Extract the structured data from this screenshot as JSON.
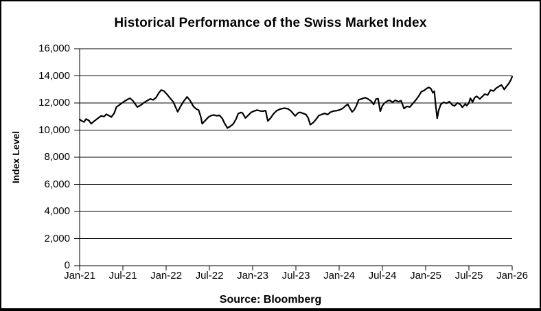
{
  "chart_data": {
    "type": "line",
    "title": "Historical Performance of the Swiss Market Index",
    "ylabel": "Index Level",
    "xlabel": "",
    "source_note": "Source: Bloomberg",
    "legend": "none",
    "grid": "horizontal",
    "line_color": "#000000",
    "ylim": [
      0,
      16000
    ],
    "y_tick_values": [
      0,
      2000,
      4000,
      6000,
      8000,
      10000,
      12000,
      14000,
      16000
    ],
    "y_tick_labels": [
      "0",
      "2,000",
      "4,000",
      "6,000",
      "8,000",
      "10,000",
      "12,000",
      "14,000",
      "16,000"
    ],
    "x_tick_months": [
      0,
      6,
      12,
      18,
      24,
      30,
      36,
      42,
      48,
      54,
      60
    ],
    "x_tick_labels": [
      "Jan-21",
      "Jul-21",
      "Jan-22",
      "Jul-22",
      "Jan-23",
      "Jul-23",
      "Jan-24",
      "Jul-24",
      "Jan-25",
      "Jul-25",
      "Jan-26"
    ],
    "xlim_months": [
      0,
      60
    ],
    "series": [
      {
        "name": "Swiss Market Index",
        "points_format": "[months since Jan-2021, index level]",
        "points": [
          [
            0,
            10780
          ],
          [
            0.3,
            10680
          ],
          [
            0.6,
            10600
          ],
          [
            0.9,
            10820
          ],
          [
            1.3,
            10700
          ],
          [
            1.6,
            10470
          ],
          [
            2.1,
            10700
          ],
          [
            2.6,
            10900
          ],
          [
            3,
            11050
          ],
          [
            3.4,
            11000
          ],
          [
            3.7,
            11170
          ],
          [
            4.1,
            11060
          ],
          [
            4.4,
            10960
          ],
          [
            4.8,
            11250
          ],
          [
            5.1,
            11700
          ],
          [
            5.5,
            11850
          ],
          [
            5.8,
            11980
          ],
          [
            6.3,
            12150
          ],
          [
            6.7,
            12280
          ],
          [
            7,
            12350
          ],
          [
            7.4,
            12150
          ],
          [
            8,
            11700
          ],
          [
            8.5,
            11850
          ],
          [
            9,
            12050
          ],
          [
            9.4,
            12180
          ],
          [
            9.8,
            12300
          ],
          [
            10.2,
            12230
          ],
          [
            10.6,
            12400
          ],
          [
            11,
            12750
          ],
          [
            11.3,
            12950
          ],
          [
            11.7,
            12880
          ],
          [
            12.1,
            12650
          ],
          [
            12.4,
            12450
          ],
          [
            13,
            12070
          ],
          [
            13.3,
            11700
          ],
          [
            13.6,
            11350
          ],
          [
            14,
            11750
          ],
          [
            14.4,
            12100
          ],
          [
            14.9,
            12450
          ],
          [
            15.3,
            12200
          ],
          [
            15.8,
            11730
          ],
          [
            16.2,
            11550
          ],
          [
            16.5,
            11480
          ],
          [
            16.8,
            11000
          ],
          [
            17,
            10470
          ],
          [
            17.4,
            10700
          ],
          [
            17.9,
            10970
          ],
          [
            18.3,
            11080
          ],
          [
            18.6,
            11120
          ],
          [
            19,
            11060
          ],
          [
            19.4,
            11090
          ],
          [
            19.8,
            10850
          ],
          [
            20.1,
            10500
          ],
          [
            20.5,
            10150
          ],
          [
            20.9,
            10280
          ],
          [
            21.3,
            10450
          ],
          [
            21.7,
            10820
          ],
          [
            22,
            11220
          ],
          [
            22.4,
            11300
          ],
          [
            22.6,
            11250
          ],
          [
            23,
            10890
          ],
          [
            23.4,
            11100
          ],
          [
            23.8,
            11310
          ],
          [
            24.2,
            11400
          ],
          [
            24.6,
            11480
          ],
          [
            25,
            11420
          ],
          [
            25.4,
            11390
          ],
          [
            25.8,
            11440
          ],
          [
            26.1,
            10670
          ],
          [
            26.5,
            10900
          ],
          [
            26.9,
            11200
          ],
          [
            27.3,
            11420
          ],
          [
            27.8,
            11550
          ],
          [
            28.4,
            11620
          ],
          [
            28.9,
            11570
          ],
          [
            29.3,
            11420
          ],
          [
            29.9,
            11050
          ],
          [
            30.3,
            11260
          ],
          [
            30.6,
            11310
          ],
          [
            31,
            11230
          ],
          [
            31.4,
            11150
          ],
          [
            31.7,
            10900
          ],
          [
            32,
            10400
          ],
          [
            32.4,
            10550
          ],
          [
            32.8,
            10800
          ],
          [
            33.2,
            11080
          ],
          [
            33.6,
            11160
          ],
          [
            34,
            11230
          ],
          [
            34.4,
            11150
          ],
          [
            34.8,
            11320
          ],
          [
            35.2,
            11400
          ],
          [
            35.7,
            11440
          ],
          [
            36.1,
            11500
          ],
          [
            36.5,
            11600
          ],
          [
            36.9,
            11790
          ],
          [
            37.2,
            11900
          ],
          [
            37.5,
            11600
          ],
          [
            37.8,
            11340
          ],
          [
            38.1,
            11500
          ],
          [
            38.4,
            11800
          ],
          [
            38.7,
            12240
          ],
          [
            39.1,
            12300
          ],
          [
            39.6,
            12400
          ],
          [
            40,
            12300
          ],
          [
            40.4,
            12150
          ],
          [
            40.8,
            11900
          ],
          [
            41.1,
            12280
          ],
          [
            41.4,
            12320
          ],
          [
            41.7,
            11390
          ],
          [
            42,
            11800
          ],
          [
            42.3,
            12000
          ],
          [
            42.7,
            12150
          ],
          [
            43,
            12200
          ],
          [
            43.4,
            12060
          ],
          [
            43.8,
            12200
          ],
          [
            44.2,
            12100
          ],
          [
            44.6,
            12160
          ],
          [
            45,
            11590
          ],
          [
            45.4,
            11750
          ],
          [
            45.8,
            11700
          ],
          [
            46.2,
            11950
          ],
          [
            46.6,
            12200
          ],
          [
            47,
            12480
          ],
          [
            47.4,
            12830
          ],
          [
            47.8,
            12930
          ],
          [
            48.1,
            13050
          ],
          [
            48.4,
            13150
          ],
          [
            48.7,
            13080
          ],
          [
            49,
            12750
          ],
          [
            49.2,
            12870
          ],
          [
            49.4,
            11800
          ],
          [
            49.6,
            10870
          ],
          [
            49.8,
            11450
          ],
          [
            50.1,
            11900
          ],
          [
            50.5,
            12050
          ],
          [
            50.9,
            11980
          ],
          [
            51.3,
            12100
          ],
          [
            51.7,
            11850
          ],
          [
            52,
            11780
          ],
          [
            52.4,
            12000
          ],
          [
            52.8,
            11900
          ],
          [
            53.1,
            11680
          ],
          [
            53.5,
            11930
          ],
          [
            53.7,
            11800
          ],
          [
            54,
            12000
          ],
          [
            54.2,
            12350
          ],
          [
            54.5,
            12070
          ],
          [
            54.8,
            12400
          ],
          [
            55.1,
            12490
          ],
          [
            55.5,
            12300
          ],
          [
            55.9,
            12490
          ],
          [
            56.2,
            12660
          ],
          [
            56.6,
            12580
          ],
          [
            57,
            12950
          ],
          [
            57.4,
            12880
          ],
          [
            57.8,
            13100
          ],
          [
            58.1,
            13200
          ],
          [
            58.5,
            13330
          ],
          [
            58.9,
            13000
          ],
          [
            59.2,
            13220
          ],
          [
            59.5,
            13420
          ],
          [
            59.8,
            13680
          ],
          [
            60,
            13950
          ]
        ]
      }
    ]
  }
}
